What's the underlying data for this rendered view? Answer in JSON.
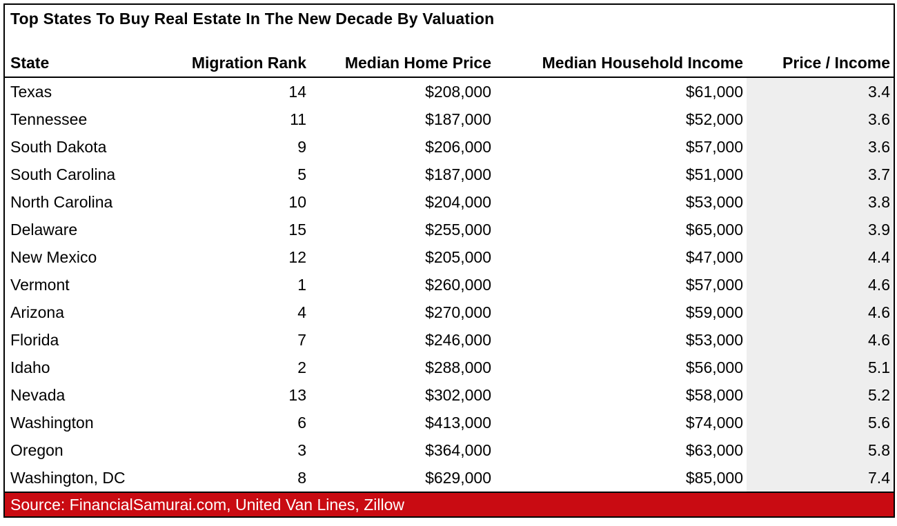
{
  "title": "Top States To Buy Real Estate In The New Decade By Valuation",
  "footer": {
    "source_text": "Source: FinancialSamurai.com, United Van Lines, Zillow"
  },
  "colors": {
    "footer_red": "#C90B12",
    "ratio_column_bg": "#EEEEEE",
    "border": "#000000",
    "text": "#000000",
    "footer_text": "#FFFFFF"
  },
  "chart_data": {
    "type": "table",
    "title": "Top States To Buy Real Estate In The New Decade By Valuation",
    "columns": [
      "State",
      "Migration Rank",
      "Median Home Price",
      "Median Household Income",
      "Price / Income"
    ],
    "rows": [
      [
        "Texas",
        "14",
        "$208,000",
        "$61,000",
        "3.4"
      ],
      [
        "Tennessee",
        "11",
        "$187,000",
        "$52,000",
        "3.6"
      ],
      [
        "South Dakota",
        "9",
        "$206,000",
        "$57,000",
        "3.6"
      ],
      [
        "South Carolina",
        "5",
        "$187,000",
        "$51,000",
        "3.7"
      ],
      [
        "North Carolina",
        "10",
        "$204,000",
        "$53,000",
        "3.8"
      ],
      [
        "Delaware",
        "15",
        "$255,000",
        "$65,000",
        "3.9"
      ],
      [
        "New Mexico",
        "12",
        "$205,000",
        "$47,000",
        "4.4"
      ],
      [
        "Vermont",
        "1",
        "$260,000",
        "$57,000",
        "4.6"
      ],
      [
        "Arizona",
        "4",
        "$270,000",
        "$59,000",
        "4.6"
      ],
      [
        "Florida",
        "7",
        "$246,000",
        "$53,000",
        "4.6"
      ],
      [
        "Idaho",
        "2",
        "$288,000",
        "$56,000",
        "5.1"
      ],
      [
        "Nevada",
        "13",
        "$302,000",
        "$58,000",
        "5.2"
      ],
      [
        "Washington",
        "6",
        "$413,000",
        "$74,000",
        "5.6"
      ],
      [
        "Oregon",
        "3",
        "$364,000",
        "$63,000",
        "5.8"
      ],
      [
        "Washington, DC",
        "8",
        "$629,000",
        "$85,000",
        "7.4"
      ]
    ],
    "notes": "Price / Income column has light gray background; source banner is red with white text",
    "source": "Source: FinancialSamurai.com, United Van Lines, Zillow"
  }
}
